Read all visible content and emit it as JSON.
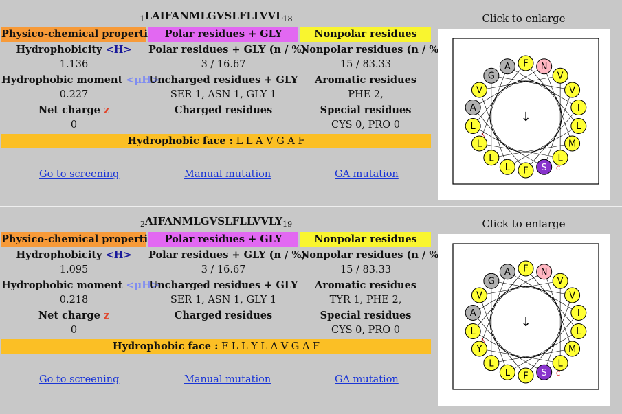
{
  "enlarge_label": "Click to enlarge",
  "headers": {
    "physico": "Physico-chemical properties",
    "polar": "Polar residues + GLY",
    "nonpolar": "Nonpolar residues"
  },
  "labels": {
    "hydrophobicity": "Hydrophobicity",
    "hydrophobicity_sym": "<H>",
    "moment": "Hydrophobic moment",
    "moment_sym": "<μH>",
    "net_charge": "Net charge",
    "net_charge_sym": "z",
    "polar_count": "Polar residues + GLY (n / %)",
    "uncharged": "Uncharged residues + GLY",
    "charged": "Charged residues",
    "nonpolar_count": "Nonpolar residues (n / %)",
    "aromatic": "Aromatic residues",
    "special": "Special residues",
    "face": "Hydrophobic face :"
  },
  "links": {
    "screening": "Go to screening",
    "manual": "Manual mutation",
    "ga": "GA mutation"
  },
  "colors": {
    "physico": "#f79a38",
    "polar": "#e268f2",
    "nonpolar": "#f9f52f",
    "face": "#fbbf25",
    "link": "#1a35d6"
  },
  "peptides": [
    {
      "start": "1",
      "sequence": "LAIFANMLGVSLFLLVVL",
      "end": "18",
      "hydrophobicity": "1.136",
      "moment": "0.227",
      "net_charge": "0",
      "polar_count": "3 / 16.67",
      "uncharged": "SER 1, ASN 1, GLY 1",
      "charged": "",
      "nonpolar_count": "15 / 83.33",
      "aromatic": "PHE 2,",
      "special": "CYS 0, PRO 0",
      "face": "L L A V G A F",
      "arrow": "↓",
      "wheel": [
        "A",
        "F",
        "N",
        "V",
        "V",
        "I",
        "L",
        "M",
        "L",
        "S",
        "F",
        "L",
        "L",
        "L",
        "L",
        "A",
        "V",
        "G"
      ],
      "wheel_colors": [
        "#b0b0b0",
        "#ffff33",
        "#ffb6c1",
        "#ffff33",
        "#ffff33",
        "#ffff33",
        "#ffff33",
        "#ffff33",
        "#ffff33",
        "#8833cc",
        "#ffff33",
        "#ffff33",
        "#ffff33",
        "#ffff33",
        "#ffff33",
        "#b0b0b0",
        "#ffff33",
        "#b0b0b0"
      ],
      "term_n": "N",
      "term_c": "C"
    },
    {
      "start": "2",
      "sequence": "AIFANMLGVSLFLLVVLY",
      "end": "19",
      "hydrophobicity": "1.095",
      "moment": "0.218",
      "net_charge": "0",
      "polar_count": "3 / 16.67",
      "uncharged": "SER 1, ASN 1, GLY 1",
      "charged": "",
      "nonpolar_count": "15 / 83.33",
      "aromatic": "TYR 1, PHE 2,",
      "special": "CYS 0, PRO 0",
      "face": "F L L Y L A V G A F",
      "arrow": "↓",
      "wheel": [
        "A",
        "F",
        "N",
        "V",
        "V",
        "I",
        "L",
        "M",
        "L",
        "S",
        "F",
        "L",
        "L",
        "Y",
        "L",
        "A",
        "V",
        "G"
      ],
      "wheel_colors": [
        "#b0b0b0",
        "#ffff33",
        "#ffb6c1",
        "#ffff33",
        "#ffff33",
        "#ffff33",
        "#ffff33",
        "#ffff33",
        "#ffff33",
        "#8833cc",
        "#ffff33",
        "#ffff33",
        "#ffff33",
        "#ffff33",
        "#ffff33",
        "#b0b0b0",
        "#ffff33",
        "#b0b0b0"
      ],
      "term_n": "N",
      "term_c": "C"
    }
  ]
}
